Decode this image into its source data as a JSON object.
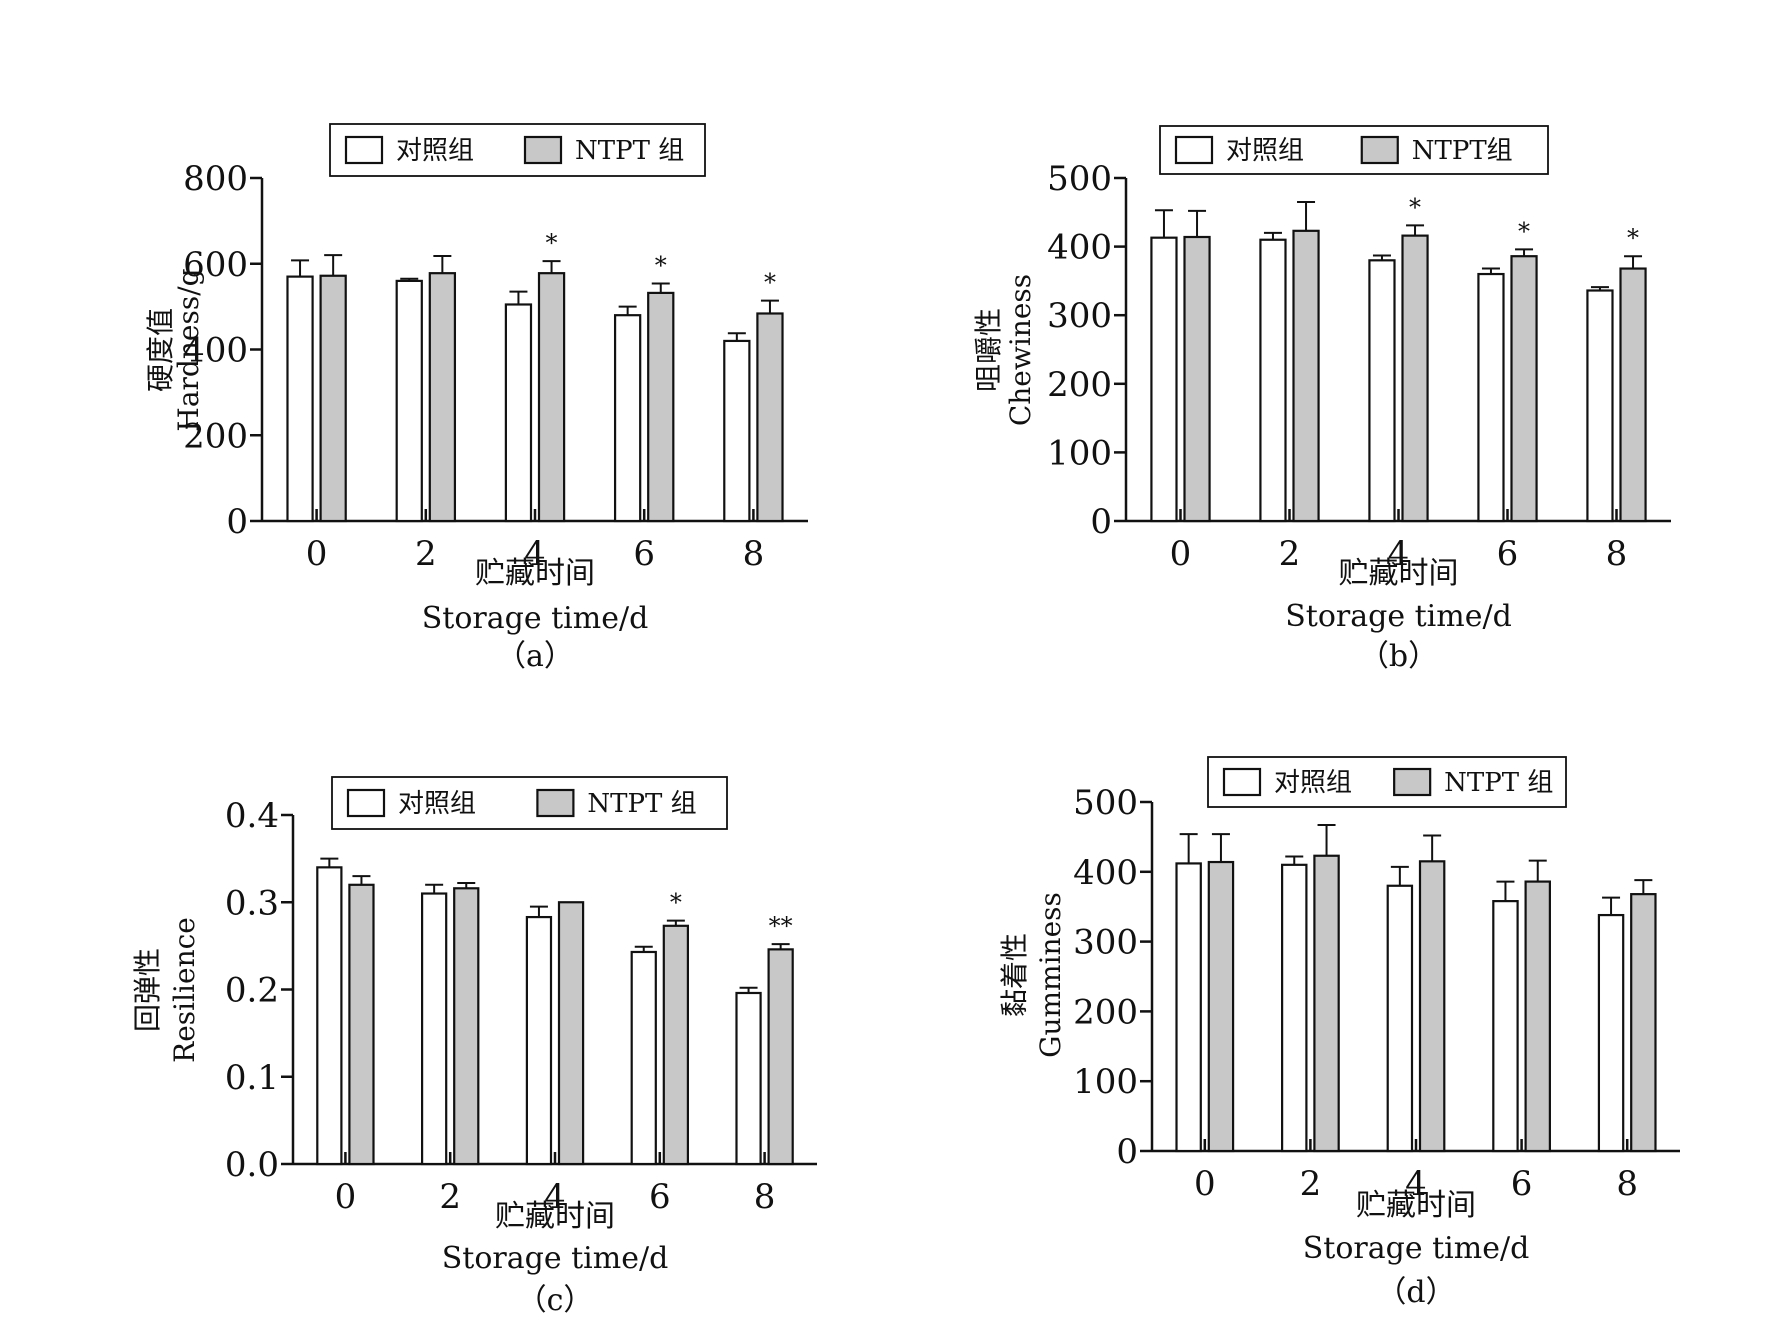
{
  "colors": {
    "control": "#ffffff",
    "ntpt": "#c8c8c8",
    "stroke": "#111111"
  },
  "chart_data": [
    {
      "type": "bar",
      "panel_label": "（a）",
      "ylabel_cn": "硬度值",
      "ylabel_en": "Hardness/g",
      "xlabel_cn": "贮藏时间",
      "xlabel_en": "Storage  time/d",
      "legend": [
        "对照组",
        "NTPT 组"
      ],
      "categories": [
        "0",
        "2",
        "4",
        "6",
        "8"
      ],
      "ylim": [
        0,
        800
      ],
      "yticks": [
        "0",
        "200",
        "400",
        "600",
        "800"
      ],
      "series": [
        {
          "name": "对照组",
          "values": [
            570,
            560,
            505,
            480,
            420
          ],
          "errors": [
            38,
            5,
            30,
            20,
            18
          ]
        },
        {
          "name": "NTPT 组",
          "values": [
            572,
            578,
            578,
            532,
            484
          ],
          "errors": [
            48,
            40,
            28,
            22,
            30
          ]
        }
      ],
      "significance": [
        "",
        "",
        "*",
        "*",
        "*"
      ]
    },
    {
      "type": "bar",
      "panel_label": "（b）",
      "ylabel_cn": "咀嚼性",
      "ylabel_en": "Chewiness",
      "xlabel_cn": "贮藏时间",
      "xlabel_en": "Storage  time/d",
      "legend": [
        "对照组",
        "NTPT组"
      ],
      "categories": [
        "0",
        "2",
        "4",
        "6",
        "8"
      ],
      "ylim": [
        0,
        500
      ],
      "yticks": [
        "0",
        "100",
        "200",
        "300",
        "400",
        "500"
      ],
      "series": [
        {
          "name": "对照组",
          "values": [
            413,
            410,
            380,
            360,
            336
          ],
          "errors": [
            40,
            10,
            7,
            8,
            5
          ]
        },
        {
          "name": "NTPT组",
          "values": [
            414,
            423,
            416,
            386,
            368
          ],
          "errors": [
            38,
            42,
            15,
            10,
            18
          ]
        }
      ],
      "significance": [
        "",
        "",
        "*",
        "*",
        "*"
      ]
    },
    {
      "type": "bar",
      "panel_label": "（c）",
      "ylabel_cn": "回弹性",
      "ylabel_en": "Resilience",
      "xlabel_cn": "贮藏时间",
      "xlabel_en": "Storage  time/d",
      "legend": [
        "对照组",
        "NTPT 组"
      ],
      "categories": [
        "0",
        "2",
        "4",
        "6",
        "8"
      ],
      "ylim": [
        0,
        0.4
      ],
      "yticks": [
        "0.0",
        "0.1",
        "0.2",
        "0.3",
        "0.4"
      ],
      "series": [
        {
          "name": "对照组",
          "values": [
            0.34,
            0.31,
            0.283,
            0.243,
            0.196
          ],
          "errors": [
            0.01,
            0.01,
            0.012,
            0.006,
            0.006
          ]
        },
        {
          "name": "NTPT 组",
          "values": [
            0.32,
            0.316,
            0.3,
            0.273,
            0.246
          ],
          "errors": [
            0.01,
            0.006,
            0,
            0.006,
            0.006
          ]
        }
      ],
      "significance": [
        "",
        "",
        "",
        "*",
        "**"
      ]
    },
    {
      "type": "bar",
      "panel_label": "（d）",
      "ylabel_cn": "黏着性",
      "ylabel_en": "Gumminess",
      "xlabel_cn": "贮藏时间",
      "xlabel_en": "Storage  time/d",
      "legend": [
        "对照组",
        "NTPT 组"
      ],
      "categories": [
        "0",
        "2",
        "4",
        "6",
        "8"
      ],
      "ylim": [
        0,
        500
      ],
      "yticks": [
        "0",
        "100",
        "200",
        "300",
        "400",
        "500"
      ],
      "series": [
        {
          "name": "对照组",
          "values": [
            412,
            410,
            380,
            358,
            338
          ],
          "errors": [
            42,
            12,
            27,
            28,
            25
          ]
        },
        {
          "name": "NTPT 组",
          "values": [
            414,
            423,
            415,
            386,
            368
          ],
          "errors": [
            40,
            44,
            37,
            30,
            20
          ]
        }
      ],
      "significance": [
        "",
        "",
        "",
        "",
        ""
      ]
    }
  ]
}
